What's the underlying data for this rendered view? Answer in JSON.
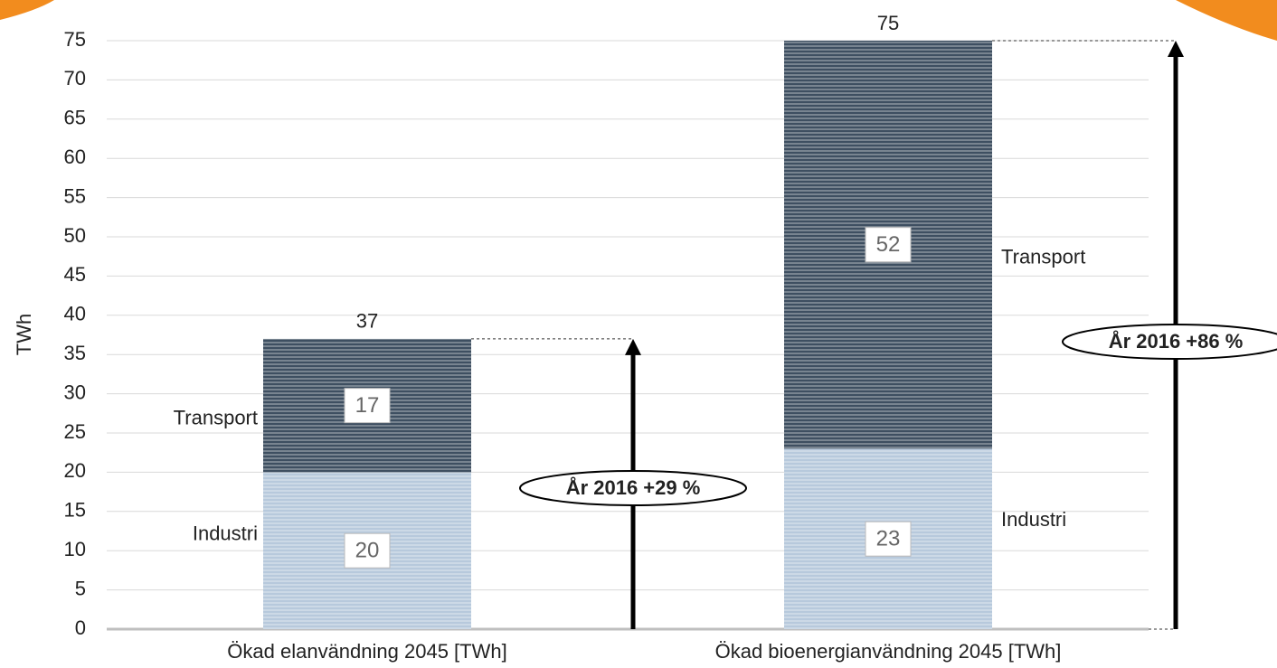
{
  "chart_data": {
    "type": "stacked_bar",
    "ylabel": "TWh",
    "categories": [
      "Ökad elanvändning 2045 [TWh]",
      "Ökad bioenergianvändning 2045 [TWh]"
    ],
    "series": [
      {
        "name": "Industri",
        "color": "#b7c9dc",
        "values": [
          20,
          23
        ]
      },
      {
        "name": "Transport",
        "color": "#3e4f61",
        "values": [
          17,
          52
        ]
      }
    ],
    "total_labels": [
      37,
      75
    ],
    "annotations": [
      "År 2016 +29 %",
      "År 2016 +86 %"
    ],
    "ylim": [
      0,
      75
    ],
    "yticks": [
      0,
      5,
      10,
      15,
      20,
      25,
      30,
      35,
      40,
      45,
      50,
      55,
      60,
      65,
      70,
      75
    ],
    "grid": true
  }
}
